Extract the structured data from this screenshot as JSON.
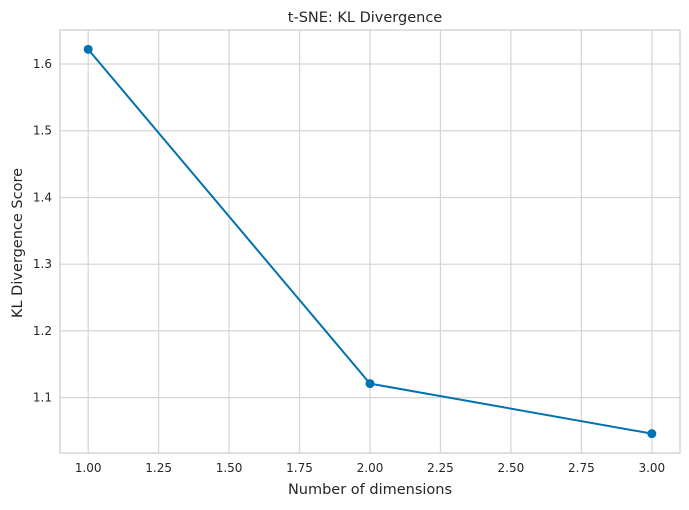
{
  "chart_data": {
    "type": "line",
    "title": "t-SNE: KL Divergence",
    "xlabel": "Number of dimensions",
    "ylabel": "KL Divergence Score",
    "x": [
      1,
      2,
      3
    ],
    "series": [
      {
        "values": [
          1.622,
          1.121,
          1.046
        ],
        "color": "#0072b2",
        "marker": "circle"
      }
    ],
    "xlim": [
      0.9,
      3.1
    ],
    "ylim": [
      1.017,
      1.651
    ],
    "xticks": [
      1.0,
      1.25,
      1.5,
      1.75,
      2.0,
      2.25,
      2.5,
      2.75,
      3.0
    ],
    "xtick_labels": [
      "1.00",
      "1.25",
      "1.50",
      "1.75",
      "2.00",
      "2.25",
      "2.50",
      "2.75",
      "3.00"
    ],
    "yticks": [
      1.1,
      1.2,
      1.3,
      1.4,
      1.5,
      1.6
    ],
    "ytick_labels": [
      "1.1",
      "1.2",
      "1.3",
      "1.4",
      "1.5",
      "1.6"
    ],
    "grid": true,
    "legend": "none",
    "colors": {
      "grid": "#d4d4d4",
      "frame": "#cccccc",
      "text": "#262626",
      "background": "#ffffff"
    }
  }
}
